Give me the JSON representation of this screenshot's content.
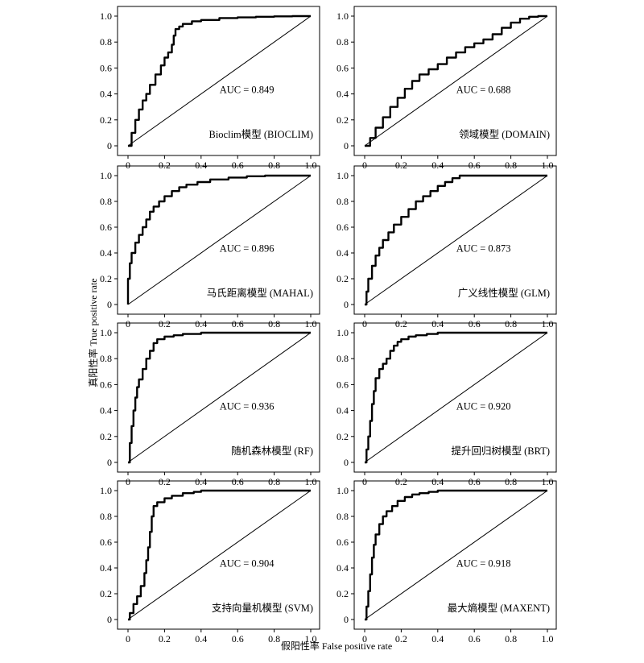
{
  "figure": {
    "ylabel": "真阳性率  True positive rate",
    "xlabel": "假阳性率  False positive rate"
  },
  "chart_data": [
    {
      "type": "line",
      "title": "Bioclim模型 (BIOCLIM)",
      "auc_label": "AUC = 0.849",
      "xlim": [
        0,
        1
      ],
      "ylim": [
        0,
        1
      ],
      "xticks": [
        "0",
        "0.2",
        "0.4",
        "0.6",
        "0.8",
        "1.0"
      ],
      "yticks": [
        "0",
        "0.2",
        "0.4",
        "0.6",
        "0.8",
        "1.0"
      ],
      "series": [
        {
          "values_x": [
            0,
            0.02,
            0.04,
            0.06,
            0.08,
            0.1,
            0.12,
            0.15,
            0.18,
            0.2,
            0.22,
            0.24,
            0.25,
            0.26,
            0.28,
            0.3,
            0.35,
            0.4,
            0.5,
            0.6,
            0.7,
            0.8,
            0.9,
            1.0
          ],
          "values_y": [
            0,
            0.1,
            0.2,
            0.28,
            0.35,
            0.4,
            0.47,
            0.55,
            0.62,
            0.68,
            0.72,
            0.78,
            0.85,
            0.9,
            0.92,
            0.94,
            0.96,
            0.97,
            0.985,
            0.99,
            0.995,
            0.998,
            1.0,
            1.0
          ]
        },
        {
          "values_x": [
            0,
            1
          ],
          "values_y": [
            0,
            1
          ]
        }
      ]
    },
    {
      "type": "line",
      "title": "领域模型 (DOMAIN)",
      "auc_label": "AUC = 0.688",
      "xlim": [
        0,
        1
      ],
      "ylim": [
        0,
        1
      ],
      "xticks": [
        "0",
        "0.2",
        "0.4",
        "0.6",
        "0.8",
        "1.0"
      ],
      "yticks": [
        "0",
        "0.2",
        "0.4",
        "0.6",
        "0.8",
        "1.0"
      ],
      "series": [
        {
          "values_x": [
            0,
            0.03,
            0.06,
            0.1,
            0.14,
            0.18,
            0.22,
            0.26,
            0.3,
            0.35,
            0.4,
            0.45,
            0.5,
            0.55,
            0.6,
            0.65,
            0.7,
            0.75,
            0.8,
            0.85,
            0.9,
            0.95,
            1.0
          ],
          "values_y": [
            0,
            0.06,
            0.14,
            0.22,
            0.3,
            0.37,
            0.44,
            0.5,
            0.55,
            0.59,
            0.63,
            0.68,
            0.72,
            0.76,
            0.79,
            0.82,
            0.86,
            0.91,
            0.95,
            0.98,
            0.995,
            1.0,
            1.0
          ]
        },
        {
          "values_x": [
            0,
            1
          ],
          "values_y": [
            0,
            1
          ]
        }
      ]
    },
    {
      "type": "line",
      "title": "马氏距离模型 (MAHAL)",
      "auc_label": "AUC = 0.896",
      "xlim": [
        0,
        1
      ],
      "ylim": [
        0,
        1
      ],
      "xticks": [
        "0",
        "0.2",
        "0.4",
        "0.6",
        "0.8",
        "1.0"
      ],
      "yticks": [
        "0",
        "0.2",
        "0.4",
        "0.6",
        "0.8",
        "1.0"
      ],
      "series": [
        {
          "values_x": [
            0,
            0,
            0.01,
            0.02,
            0.04,
            0.06,
            0.08,
            0.1,
            0.12,
            0.14,
            0.17,
            0.2,
            0.24,
            0.28,
            0.32,
            0.38,
            0.45,
            0.55,
            0.65,
            0.75,
            0.85,
            1.0
          ],
          "values_y": [
            0,
            0.2,
            0.32,
            0.4,
            0.48,
            0.54,
            0.6,
            0.66,
            0.72,
            0.76,
            0.8,
            0.84,
            0.88,
            0.91,
            0.93,
            0.95,
            0.97,
            0.985,
            0.995,
            1.0,
            1.0,
            1.0
          ]
        },
        {
          "values_x": [
            0,
            1
          ],
          "values_y": [
            0,
            1
          ]
        }
      ]
    },
    {
      "type": "line",
      "title": "广义线性模型 (GLM)",
      "auc_label": "AUC = 0.873",
      "xlim": [
        0,
        1
      ],
      "ylim": [
        0,
        1
      ],
      "xticks": [
        "0",
        "0.2",
        "0.4",
        "0.6",
        "0.8",
        "1.0"
      ],
      "yticks": [
        "0",
        "0.2",
        "0.4",
        "0.6",
        "0.8",
        "1.0"
      ],
      "series": [
        {
          "values_x": [
            0,
            0.01,
            0.02,
            0.04,
            0.06,
            0.08,
            0.1,
            0.13,
            0.16,
            0.2,
            0.24,
            0.28,
            0.32,
            0.36,
            0.4,
            0.44,
            0.48,
            0.52,
            0.6,
            0.7,
            0.8,
            1.0
          ],
          "values_y": [
            0,
            0.1,
            0.2,
            0.3,
            0.38,
            0.44,
            0.5,
            0.56,
            0.62,
            0.68,
            0.74,
            0.8,
            0.84,
            0.88,
            0.92,
            0.95,
            0.98,
            1.0,
            1.0,
            1.0,
            1.0,
            1.0
          ]
        },
        {
          "values_x": [
            0,
            1
          ],
          "values_y": [
            0,
            1
          ]
        }
      ]
    },
    {
      "type": "line",
      "title": "随机森林模型 (RF)",
      "auc_label": "AUC = 0.936",
      "xlim": [
        0,
        1
      ],
      "ylim": [
        0,
        1
      ],
      "xticks": [
        "0",
        "0.2",
        "0.4",
        "0.6",
        "0.8",
        "1.0"
      ],
      "yticks": [
        "0",
        "0.2",
        "0.4",
        "0.6",
        "0.8",
        "1.0"
      ],
      "series": [
        {
          "values_x": [
            0,
            0.01,
            0.02,
            0.03,
            0.04,
            0.05,
            0.06,
            0.08,
            0.1,
            0.12,
            0.14,
            0.16,
            0.2,
            0.25,
            0.3,
            0.4,
            0.5,
            0.7,
            1.0
          ],
          "values_y": [
            0,
            0.15,
            0.28,
            0.4,
            0.5,
            0.58,
            0.64,
            0.72,
            0.8,
            0.86,
            0.92,
            0.95,
            0.97,
            0.98,
            0.99,
            1.0,
            1.0,
            1.0,
            1.0
          ]
        },
        {
          "values_x": [
            0,
            1
          ],
          "values_y": [
            0,
            1
          ]
        }
      ]
    },
    {
      "type": "line",
      "title": "提升回归树模型 (BRT)",
      "auc_label": "AUC = 0.920",
      "xlim": [
        0,
        1
      ],
      "ylim": [
        0,
        1
      ],
      "xticks": [
        "0",
        "0.2",
        "0.4",
        "0.6",
        "0.8",
        "1.0"
      ],
      "yticks": [
        "0",
        "0.2",
        "0.4",
        "0.6",
        "0.8",
        "1.0"
      ],
      "series": [
        {
          "values_x": [
            0,
            0.01,
            0.02,
            0.03,
            0.04,
            0.05,
            0.06,
            0.08,
            0.1,
            0.12,
            0.14,
            0.16,
            0.18,
            0.2,
            0.24,
            0.28,
            0.34,
            0.4,
            0.5,
            0.6,
            1.0
          ],
          "values_y": [
            0,
            0.1,
            0.2,
            0.32,
            0.45,
            0.55,
            0.65,
            0.72,
            0.76,
            0.8,
            0.86,
            0.9,
            0.93,
            0.95,
            0.97,
            0.98,
            0.99,
            1.0,
            1.0,
            1.0,
            1.0
          ]
        },
        {
          "values_x": [
            0,
            1
          ],
          "values_y": [
            0,
            1
          ]
        }
      ]
    },
    {
      "type": "line",
      "title": "支持向量机模型 (SVM)",
      "auc_label": "AUC = 0.904",
      "xlim": [
        0,
        1
      ],
      "ylim": [
        0,
        1
      ],
      "xticks": [
        "0",
        "0.2",
        "0.4",
        "0.6",
        "0.8",
        "1.0"
      ],
      "yticks": [
        "0",
        "0.2",
        "0.4",
        "0.6",
        "0.8",
        "1.0"
      ],
      "series": [
        {
          "values_x": [
            0,
            0.01,
            0.03,
            0.05,
            0.07,
            0.09,
            0.1,
            0.11,
            0.12,
            0.13,
            0.14,
            0.16,
            0.2,
            0.24,
            0.3,
            0.36,
            0.4,
            0.5,
            0.6,
            1.0
          ],
          "values_y": [
            0,
            0.05,
            0.12,
            0.18,
            0.26,
            0.36,
            0.46,
            0.56,
            0.68,
            0.8,
            0.88,
            0.91,
            0.94,
            0.96,
            0.98,
            0.99,
            1.0,
            1.0,
            1.0,
            1.0
          ]
        },
        {
          "values_x": [
            0,
            1
          ],
          "values_y": [
            0,
            1
          ]
        }
      ]
    },
    {
      "type": "line",
      "title": "最大熵模型 (MAXENT)",
      "auc_label": "AUC = 0.918",
      "xlim": [
        0,
        1
      ],
      "ylim": [
        0,
        1
      ],
      "xticks": [
        "0",
        "0.2",
        "0.4",
        "0.6",
        "0.8",
        "1.0"
      ],
      "yticks": [
        "0",
        "0.2",
        "0.4",
        "0.6",
        "0.8",
        "1.0"
      ],
      "series": [
        {
          "values_x": [
            0,
            0.01,
            0.02,
            0.03,
            0.04,
            0.05,
            0.06,
            0.08,
            0.1,
            0.12,
            0.15,
            0.18,
            0.22,
            0.26,
            0.3,
            0.35,
            0.4,
            0.5,
            0.6,
            0.8,
            1.0
          ],
          "values_y": [
            0,
            0.1,
            0.22,
            0.35,
            0.48,
            0.58,
            0.66,
            0.74,
            0.8,
            0.84,
            0.88,
            0.92,
            0.95,
            0.97,
            0.98,
            0.99,
            1.0,
            1.0,
            1.0,
            1.0,
            1.0
          ]
        },
        {
          "values_x": [
            0,
            1
          ],
          "values_y": [
            0,
            1
          ]
        }
      ]
    }
  ]
}
